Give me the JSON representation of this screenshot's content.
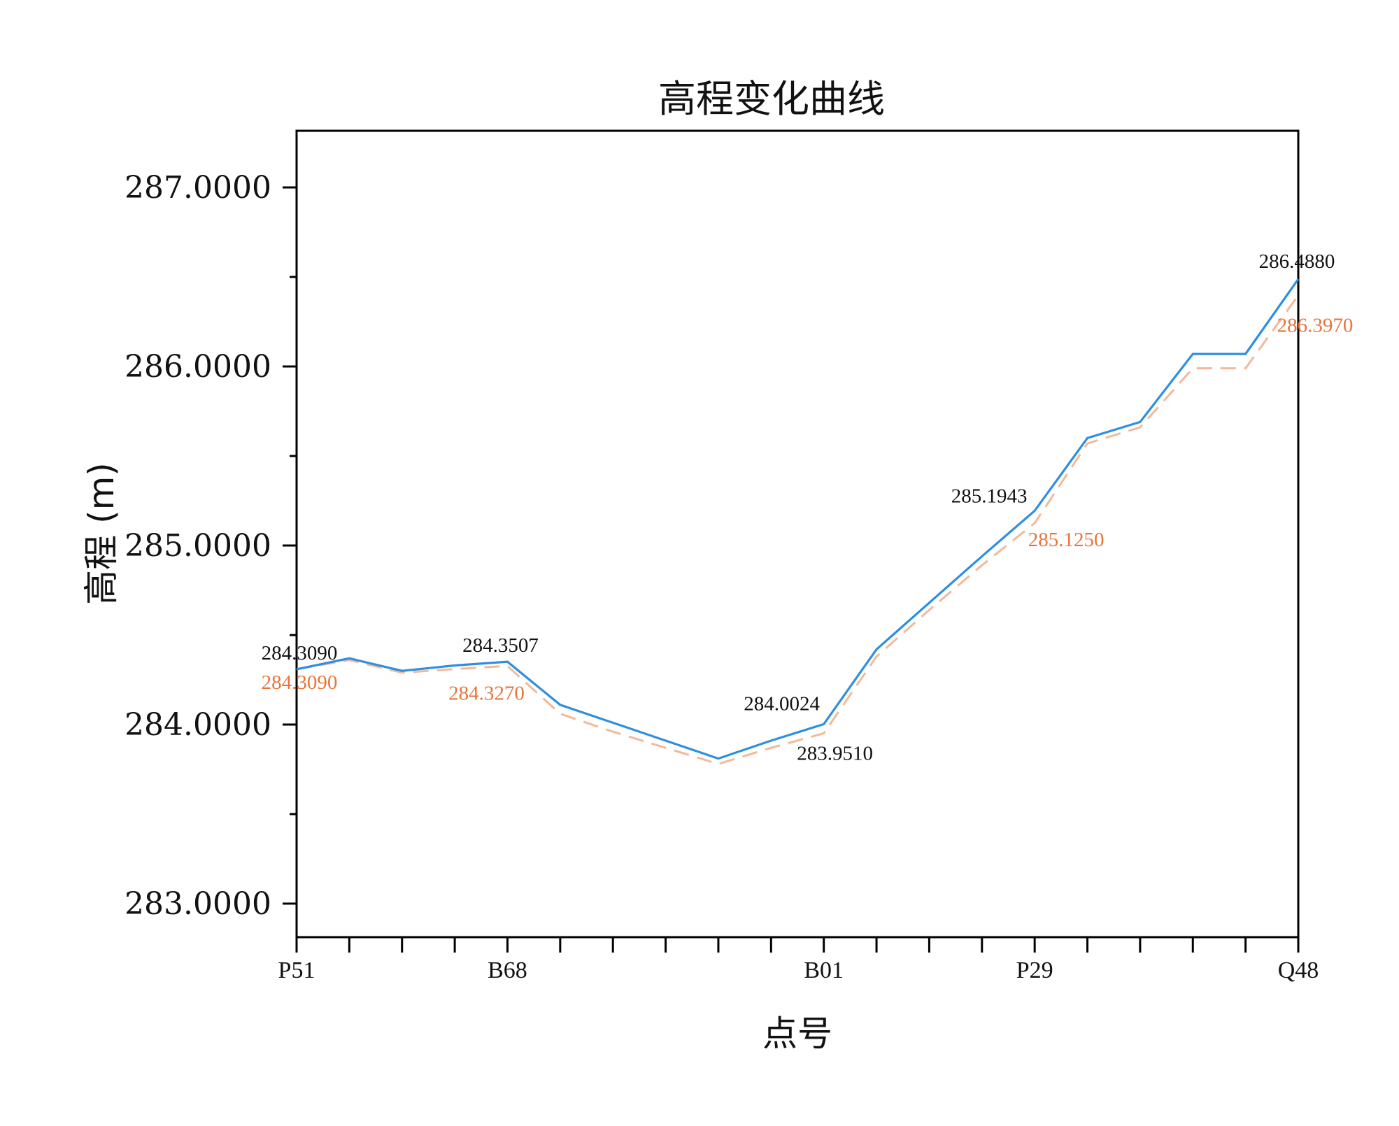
{
  "chart_data": {
    "type": "line",
    "title": "高程变化曲线",
    "xlabel": "点号",
    "ylabel": "高程 (m)",
    "ylim": [
      282.8,
      287.3
    ],
    "yticks": [
      283.0,
      284.0,
      285.0,
      286.0,
      287.0
    ],
    "ytick_labels": [
      "283.0000",
      "284.0000",
      "285.0000",
      "286.0000",
      "287.0000"
    ],
    "x_count": 20,
    "xtick_labels": [
      {
        "index": 0,
        "label": "P51"
      },
      {
        "index": 4,
        "label": "B68"
      },
      {
        "index": 10,
        "label": "B01"
      },
      {
        "index": 14,
        "label": "P29"
      },
      {
        "index": 19,
        "label": "Q48"
      }
    ],
    "grid": false,
    "legend": "none",
    "series": [
      {
        "style": "solid",
        "color": "#2E8FE0",
        "values": [
          284.309,
          284.37,
          284.3,
          284.33,
          284.3507,
          284.11,
          284.01,
          283.91,
          283.81,
          283.91,
          284.0024,
          284.42,
          284.68,
          284.94,
          285.1943,
          285.6,
          285.69,
          286.07,
          286.07,
          286.488
        ]
      },
      {
        "style": "dashed",
        "color": "#F4B899",
        "values": [
          284.309,
          284.36,
          284.29,
          284.31,
          284.327,
          284.06,
          283.96,
          283.87,
          283.78,
          283.87,
          283.951,
          284.38,
          284.64,
          284.89,
          285.125,
          285.57,
          285.66,
          285.99,
          285.99,
          286.397
        ]
      }
    ],
    "data_labels": [
      {
        "series": 0,
        "index": 0,
        "text": "284.3090",
        "pos": "above",
        "color": "#111111"
      },
      {
        "series": 1,
        "index": 0,
        "text": "284.3090",
        "pos": "below",
        "color": "#E8743B"
      },
      {
        "series": 0,
        "index": 4,
        "text": "284.3507",
        "pos": "above",
        "color": "#111111"
      },
      {
        "series": 1,
        "index": 4,
        "text": "284.3270",
        "pos": "below",
        "color": "#E8743B"
      },
      {
        "series": 0,
        "index": 10,
        "text": "284.0024",
        "pos": "above",
        "color": "#111111"
      },
      {
        "series": 1,
        "index": 10,
        "text": "283.9510",
        "pos": "below",
        "color": "#111111"
      },
      {
        "series": 0,
        "index": 14,
        "text": "285.1943",
        "pos": "above",
        "color": "#111111"
      },
      {
        "series": 1,
        "index": 14,
        "text": "285.1250",
        "pos": "below",
        "color": "#E8743B"
      },
      {
        "series": 0,
        "index": 19,
        "text": "286.4880",
        "pos": "above",
        "color": "#111111"
      },
      {
        "series": 1,
        "index": 19,
        "text": "286.3970",
        "pos": "below",
        "color": "#E8743B"
      }
    ]
  }
}
